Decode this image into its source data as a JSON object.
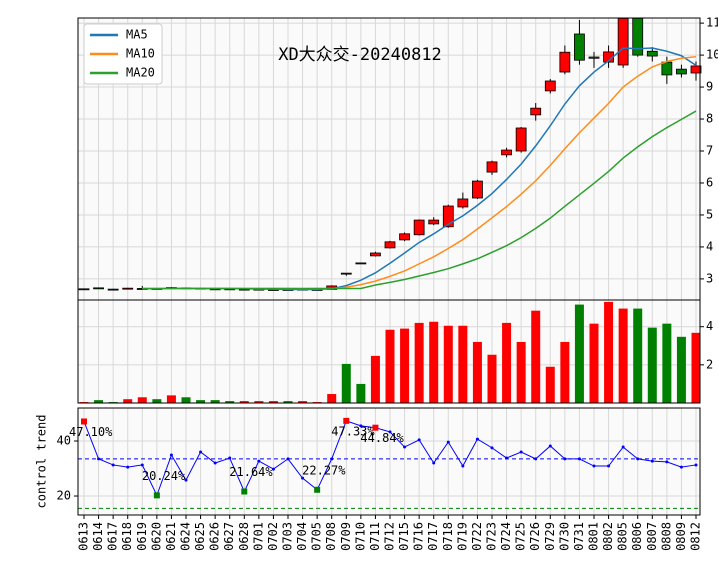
{
  "chart_data": [
    {
      "type": "candlestick",
      "title": "XD大众交-20240812",
      "categories": [
        "0613",
        "0614",
        "0617",
        "0618",
        "0619",
        "0620",
        "0621",
        "0624",
        "0625",
        "0626",
        "0627",
        "0628",
        "0701",
        "0702",
        "0703",
        "0704",
        "0705",
        "0708",
        "0709",
        "0710",
        "0711",
        "0712",
        "0715",
        "0716",
        "0717",
        "0718",
        "0719",
        "0722",
        "0723",
        "0724",
        "0725",
        "0726",
        "0729",
        "0730",
        "0731",
        "0801",
        "0802",
        "0805",
        "0806",
        "0807",
        "0808",
        "0809",
        "0812"
      ],
      "open": [
        2.69,
        2.72,
        2.68,
        2.68,
        2.7,
        2.7,
        2.7,
        2.72,
        2.71,
        2.69,
        2.69,
        2.68,
        2.68,
        2.67,
        2.67,
        2.68,
        2.66,
        2.67,
        3.17,
        3.49,
        3.72,
        3.97,
        4.22,
        4.38,
        4.72,
        4.63,
        5.25,
        5.53,
        6.34,
        6.88,
        7.0,
        8.13,
        8.88,
        9.47,
        10.66,
        9.94,
        9.78,
        9.69,
        11.15,
        10.12,
        9.78,
        9.56,
        9.44
      ],
      "high": [
        2.7,
        2.73,
        2.69,
        2.72,
        2.78,
        2.71,
        2.75,
        2.73,
        2.72,
        2.7,
        2.7,
        2.69,
        2.69,
        2.68,
        2.68,
        2.69,
        2.68,
        2.8,
        3.18,
        3.5,
        3.85,
        4.19,
        4.45,
        4.86,
        4.93,
        5.32,
        5.7,
        6.1,
        6.7,
        7.1,
        7.75,
        8.5,
        9.25,
        10.3,
        11.1,
        10.1,
        10.3,
        11.15,
        11.15,
        10.25,
        9.95,
        9.7,
        9.8
      ],
      "low": [
        2.67,
        2.69,
        2.66,
        2.67,
        2.68,
        2.68,
        2.69,
        2.69,
        2.69,
        2.68,
        2.67,
        2.67,
        2.66,
        2.66,
        2.66,
        2.65,
        2.65,
        2.66,
        3.1,
        3.49,
        3.7,
        3.95,
        4.18,
        4.36,
        4.68,
        4.6,
        5.2,
        5.5,
        6.25,
        6.8,
        6.95,
        7.95,
        8.8,
        9.4,
        9.7,
        9.6,
        9.6,
        9.6,
        9.95,
        9.8,
        9.1,
        9.3,
        9.2
      ],
      "close": [
        2.68,
        2.7,
        2.67,
        2.71,
        2.7,
        2.69,
        2.73,
        2.7,
        2.7,
        2.69,
        2.68,
        2.68,
        2.67,
        2.67,
        2.67,
        2.66,
        2.67,
        2.78,
        3.18,
        3.5,
        3.81,
        4.16,
        4.41,
        4.84,
        4.84,
        5.28,
        5.5,
        6.06,
        6.66,
        7.03,
        7.72,
        8.34,
        9.19,
        10.09,
        9.84,
        9.9,
        10.1,
        11.15,
        10.0,
        9.97,
        9.38,
        9.41,
        9.66
      ],
      "up_color": "#ff0000",
      "down_color": "#008000",
      "series": [
        {
          "name": "MA5",
          "color": "#1f77b4",
          "values": [
            null,
            null,
            null,
            null,
            2.69,
            2.69,
            2.7,
            2.71,
            2.7,
            2.7,
            2.7,
            2.69,
            2.68,
            2.68,
            2.67,
            2.67,
            2.67,
            2.69,
            2.79,
            2.96,
            3.19,
            3.49,
            3.81,
            4.14,
            4.41,
            4.71,
            4.97,
            5.3,
            5.67,
            6.11,
            6.59,
            7.16,
            7.79,
            8.47,
            9.04,
            9.47,
            9.82,
            10.22,
            10.2,
            10.22,
            10.12,
            9.98,
            9.68
          ]
        },
        {
          "name": "MA10",
          "color": "#ff8c1a",
          "values": [
            null,
            null,
            null,
            null,
            2.7,
            2.7,
            2.7,
            2.7,
            2.7,
            2.7,
            2.7,
            2.7,
            2.7,
            2.7,
            2.7,
            2.69,
            2.7,
            2.69,
            2.74,
            2.82,
            2.93,
            3.08,
            3.25,
            3.47,
            3.69,
            3.95,
            4.23,
            4.56,
            4.91,
            5.26,
            5.65,
            6.07,
            6.55,
            7.07,
            7.57,
            8.03,
            8.49,
            9.0,
            9.34,
            9.63,
            9.8,
            9.9,
            9.95
          ]
        },
        {
          "name": "MA20",
          "color": "#2ca02c",
          "values": [
            null,
            null,
            null,
            null,
            2.7,
            2.7,
            2.7,
            2.7,
            2.7,
            2.7,
            2.7,
            2.7,
            2.7,
            2.7,
            2.7,
            2.7,
            2.7,
            2.7,
            2.7,
            2.7,
            2.81,
            2.89,
            2.98,
            3.09,
            3.2,
            3.32,
            3.47,
            3.63,
            3.83,
            4.04,
            4.29,
            4.58,
            4.9,
            5.27,
            5.63,
            5.99,
            6.36,
            6.78,
            7.13,
            7.45,
            7.73,
            7.99,
            8.25
          ]
        }
      ],
      "legend": "upper left",
      "ylim": [
        2.34,
        11.16
      ],
      "yticks": [
        3,
        4,
        5,
        6,
        7,
        8,
        9,
        10,
        11
      ],
      "grid": true
    },
    {
      "type": "bar",
      "values": [
        0.05,
        0.15,
        0.05,
        0.2,
        0.3,
        0.2,
        0.4,
        0.3,
        0.15,
        0.15,
        0.1,
        0.1,
        0.1,
        0.1,
        0.1,
        0.1,
        0.05,
        0.47,
        2.05,
        1.0,
        2.47,
        3.84,
        3.9,
        4.2,
        4.26,
        4.05,
        4.05,
        3.2,
        2.53,
        4.2,
        3.2,
        4.84,
        1.9,
        3.2,
        5.16,
        4.16,
        5.3,
        4.95,
        4.95,
        3.95,
        4.16,
        3.47,
        3.68
      ],
      "colors": [
        "#ff0000",
        "#008000",
        "#008000",
        "#ff0000",
        "#ff0000",
        "#008000",
        "#ff0000",
        "#008000",
        "#008000",
        "#008000",
        "#008000",
        "#ff0000",
        "#ff0000",
        "#ff0000",
        "#008000",
        "#ff0000",
        "#ff0000",
        "#ff0000",
        "#008000",
        "#008000",
        "#ff0000",
        "#ff0000",
        "#ff0000",
        "#ff0000",
        "#ff0000",
        "#ff0000",
        "#ff0000",
        "#ff0000",
        "#ff0000",
        "#ff0000",
        "#ff0000",
        "#ff0000",
        "#ff0000",
        "#ff0000",
        "#008000",
        "#ff0000",
        "#ff0000",
        "#ff0000",
        "#008000",
        "#008000",
        "#008000",
        "#008000",
        "#ff0000"
      ],
      "ylim": [
        0,
        5.4
      ],
      "yticks": [
        2,
        4
      ],
      "grid": true
    },
    {
      "type": "line",
      "ylabel": "control trend",
      "color": "#0000ff",
      "values": [
        47.1,
        33.5,
        31.3,
        30.5,
        31.3,
        20.24,
        34.9,
        25.8,
        36,
        32,
        33.8,
        21.64,
        32.7,
        29.8,
        33.5,
        26.5,
        22.27,
        33.5,
        47.33,
        45.5,
        44.84,
        43.3,
        37.8,
        40.4,
        32,
        39.6,
        30.9,
        40.7,
        37.5,
        33.8,
        36,
        33.5,
        38.2,
        33.5,
        33.5,
        30.9,
        30.9,
        37.8,
        33.5,
        32.7,
        32.4,
        30.5,
        31.3
      ],
      "hlines": [
        {
          "value": 52,
          "color": "#ff0000"
        },
        {
          "value": 33.5,
          "color": "#0000ff"
        },
        {
          "value": 15.5,
          "color": "#008000"
        }
      ],
      "annotations": [
        {
          "index": 0,
          "label": "47.10%",
          "color": "#ff0000"
        },
        {
          "index": 5,
          "label": "20.24%",
          "color": "#008000"
        },
        {
          "index": 11,
          "label": "21.64%",
          "color": "#008000"
        },
        {
          "index": 16,
          "label": "22.27%",
          "color": "#008000"
        },
        {
          "index": 18,
          "label": "47.33%",
          "color": "#ff0000"
        },
        {
          "index": 20,
          "label": "44.84%",
          "color": "#ff0000"
        }
      ],
      "ylim": [
        13.1,
        52.0
      ],
      "yticks": [
        20,
        40
      ],
      "grid": true
    }
  ]
}
